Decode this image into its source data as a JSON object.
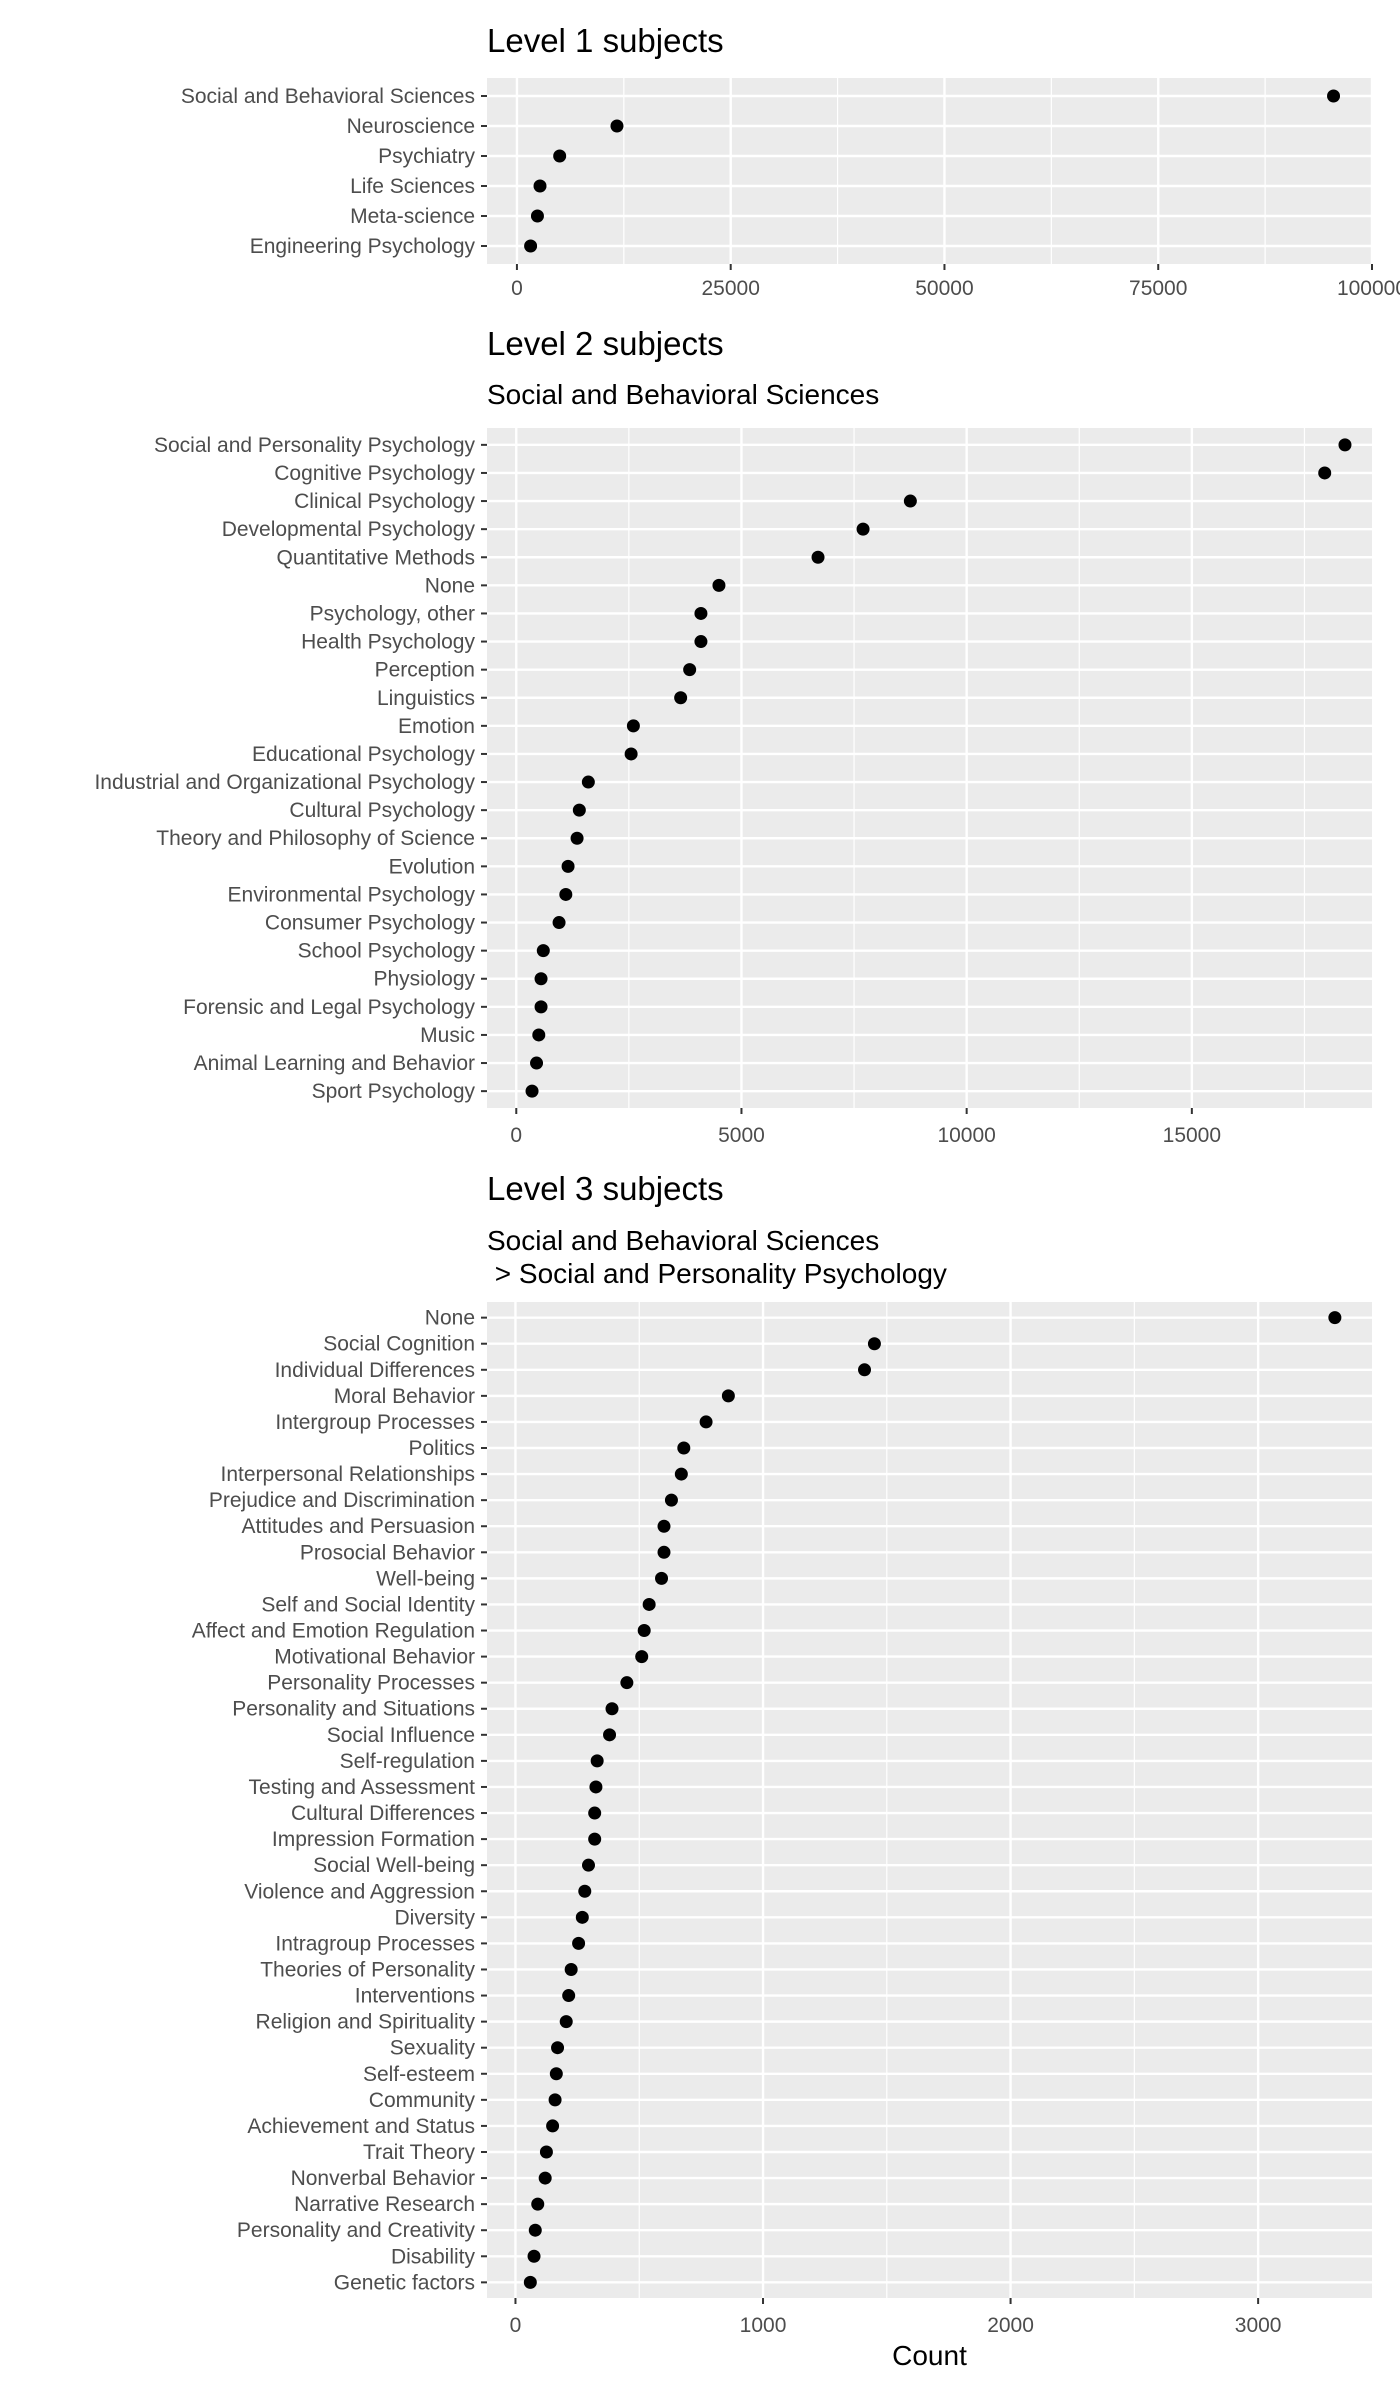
{
  "chart_data": [
    {
      "type": "scatter",
      "title": "Level 1 subjects",
      "subtitle": [],
      "categories": [
        "Social and Behavioral Sciences",
        "Neuroscience",
        "Psychiatry",
        "Life Sciences",
        "Meta-science",
        "Engineering Psychology"
      ],
      "values": [
        95500,
        11700,
        5000,
        2700,
        2400,
        1600
      ],
      "xlim": [
        -3500,
        100000
      ],
      "xticks": [
        0,
        25000,
        50000,
        75000,
        100000
      ],
      "xlabel": "",
      "grid": true,
      "point_color": "#000000",
      "panel_color": "#ebebeb"
    },
    {
      "type": "scatter",
      "title": "Level 2 subjects",
      "subtitle": [
        "Social and Behavioral Sciences"
      ],
      "categories": [
        "Social and Personality Psychology",
        "Cognitive Psychology",
        "Clinical Psychology",
        "Developmental Psychology",
        "Quantitative Methods",
        "None",
        "Psychology, other",
        "Health Psychology",
        "Perception",
        "Linguistics",
        "Emotion",
        "Educational Psychology",
        "Industrial and Organizational Psychology",
        "Cultural Psychology",
        "Theory and Philosophy of Science",
        "Evolution",
        "Environmental Psychology",
        "Consumer Psychology",
        "School Psychology",
        "Physiology",
        "Forensic and Legal Psychology",
        "Music",
        "Animal Learning and Behavior",
        "Sport Psychology"
      ],
      "values": [
        18400,
        17950,
        8750,
        7700,
        6700,
        4500,
        4100,
        4100,
        3850,
        3650,
        2600,
        2550,
        1600,
        1400,
        1350,
        1150,
        1100,
        950,
        600,
        550,
        550,
        500,
        450,
        350
      ],
      "xlim": [
        -650,
        19000
      ],
      "xticks": [
        0,
        5000,
        10000,
        15000
      ],
      "xlabel": "",
      "grid": true,
      "point_color": "#000000",
      "panel_color": "#ebebeb"
    },
    {
      "type": "scatter",
      "title": "Level 3 subjects",
      "subtitle": [
        "Social and Behavioral Sciences",
        " > Social and Personality Psychology"
      ],
      "categories": [
        "None",
        "Social Cognition",
        "Individual Differences",
        "Moral Behavior",
        "Intergroup Processes",
        "Politics",
        "Interpersonal Relationships",
        "Prejudice and Discrimination",
        "Attitudes and Persuasion",
        "Prosocial Behavior",
        "Well-being",
        "Self and Social Identity",
        "Affect and Emotion Regulation",
        "Motivational Behavior",
        "Personality Processes",
        "Personality and Situations",
        "Social Influence",
        "Self-regulation",
        "Testing and Assessment",
        "Cultural Differences",
        "Impression Formation",
        "Social Well-being",
        "Violence and Aggression",
        "Diversity",
        "Intragroup Processes",
        "Theories of Personality",
        "Interventions",
        "Religion and Spirituality",
        "Sexuality",
        "Self-esteem",
        "Community",
        "Achievement and Status",
        "Trait Theory",
        "Nonverbal Behavior",
        "Narrative Research",
        "Personality and Creativity",
        "Disability",
        "Genetic factors"
      ],
      "values": [
        3310,
        1450,
        1410,
        860,
        770,
        680,
        670,
        630,
        600,
        600,
        590,
        540,
        520,
        510,
        450,
        390,
        380,
        330,
        325,
        320,
        320,
        295,
        280,
        270,
        255,
        225,
        215,
        205,
        170,
        165,
        160,
        150,
        125,
        120,
        90,
        80,
        75,
        60
      ],
      "xlim": [
        -115,
        3460
      ],
      "xticks": [
        0,
        1000,
        2000,
        3000
      ],
      "xlabel": "Count",
      "grid": true,
      "point_color": "#000000",
      "panel_color": "#ebebeb"
    }
  ]
}
